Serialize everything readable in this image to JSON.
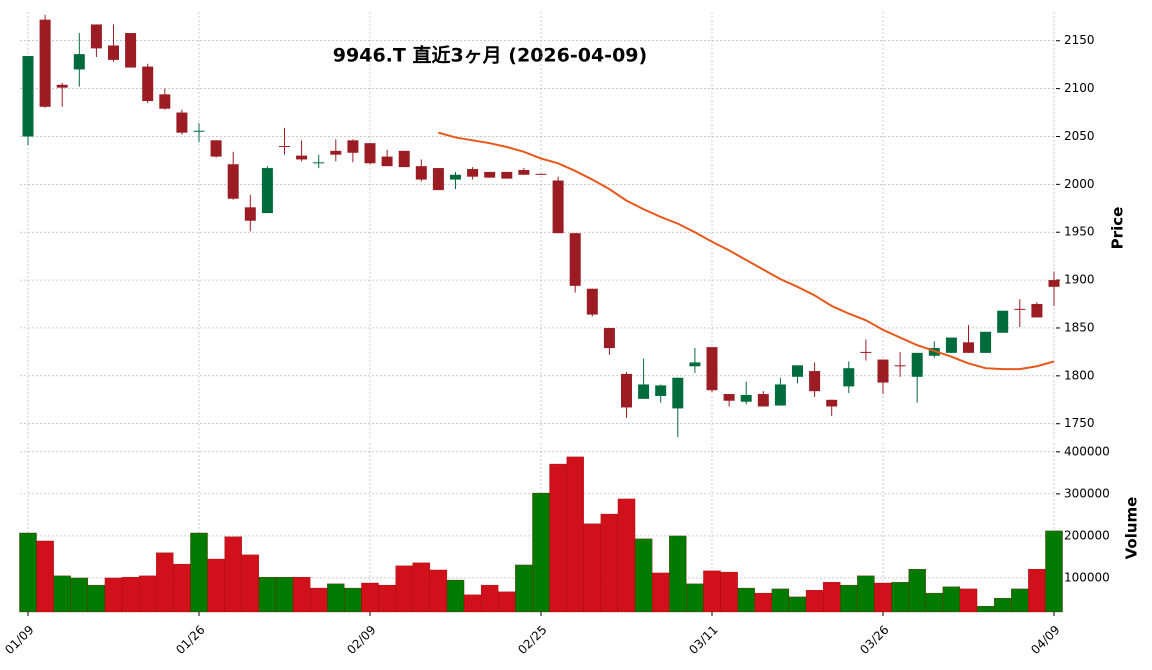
{
  "chart_data": {
    "type": "candlestick",
    "title": "9946.T  直近3ヶ月  (2026-04-09)",
    "categories": [
      "01/09",
      null,
      null,
      null,
      null,
      null,
      null,
      null,
      null,
      null,
      "01/26",
      null,
      null,
      null,
      null,
      null,
      null,
      null,
      null,
      null,
      "02/09",
      null,
      null,
      null,
      null,
      null,
      null,
      null,
      null,
      null,
      "02/25",
      null,
      null,
      null,
      null,
      null,
      null,
      null,
      null,
      null,
      "03/11",
      null,
      null,
      null,
      null,
      null,
      null,
      null,
      null,
      null,
      "03/26",
      null,
      null,
      null,
      null,
      null,
      null,
      null,
      null,
      null,
      "04/09"
    ],
    "open": [
      2050,
      2172,
      2104,
      2120,
      2167,
      2145,
      2158,
      2123,
      2094,
      2075,
      2055,
      2046,
      2021,
      1976,
      1970,
      2040,
      2030,
      2023,
      2035,
      2046,
      2043,
      2029,
      2035,
      2019,
      2017,
      2005,
      2016,
      2013,
      2013,
      2015,
      2011,
      2004,
      1949,
      1891,
      1850,
      1802,
      1776,
      1779,
      1766,
      1810,
      1830,
      1781,
      1773,
      1781,
      1769,
      1799,
      1805,
      1775,
      1789,
      1825,
      1817,
      1811,
      1799,
      1821,
      1824,
      1835,
      1824,
      1845,
      1870,
      1875,
      1900
    ],
    "high": [
      2134,
      2177,
      2106,
      2158,
      2167,
      2167,
      2158,
      2126,
      2100,
      2078,
      2064,
      2046,
      2034,
      1989,
      2019,
      2059,
      2046,
      2031,
      2047,
      2047,
      2043,
      2036,
      2035,
      2026,
      2017,
      2013,
      2018,
      2013,
      2013,
      2017,
      2011,
      2008,
      1949,
      1891,
      1850,
      1804,
      1818,
      1791,
      1798,
      1829,
      1830,
      1781,
      1794,
      1784,
      1798,
      1811,
      1814,
      1775,
      1815,
      1838,
      1817,
      1825,
      1824,
      1836,
      1840,
      1853,
      1846,
      1868,
      1880,
      1877,
      1909
    ],
    "low": [
      2041,
      2080,
      2081,
      2102,
      2133,
      2128,
      2122,
      2085,
      2078,
      2052,
      2044,
      2028,
      1984,
      1951,
      1970,
      2031,
      2024,
      2017,
      2024,
      2023,
      2021,
      2019,
      2018,
      2003,
      1994,
      1995,
      2005,
      2007,
      2006,
      2010,
      2010,
      1949,
      1887,
      1862,
      1822,
      1756,
      1776,
      1772,
      1736,
      1803,
      1783,
      1768,
      1770,
      1768,
      1769,
      1792,
      1778,
      1758,
      1782,
      1816,
      1781,
      1799,
      1772,
      1819,
      1824,
      1824,
      1824,
      1845,
      1851,
      1861,
      1873
    ],
    "close": [
      2134,
      2081,
      2101,
      2136,
      2142,
      2130,
      2122,
      2087,
      2079,
      2054,
      2056,
      2029,
      1985,
      1962,
      2017,
      2039,
      2026,
      2023,
      2031,
      2033,
      2022,
      2019,
      2018,
      2005,
      1994,
      2010,
      2008,
      2007,
      2006,
      2010,
      2010,
      1949,
      1894,
      1864,
      1829,
      1767,
      1791,
      1790,
      1798,
      1814,
      1785,
      1774,
      1780,
      1768,
      1791,
      1811,
      1784,
      1768,
      1808,
      1824,
      1793,
      1810,
      1824,
      1829,
      1840,
      1824,
      1846,
      1868,
      1869,
      1861,
      1893
    ],
    "up_color": "#006b3c",
    "down_color": "#9b1c23",
    "series": [
      {
        "color": "#e8581a",
        "values": [
          null,
          null,
          null,
          null,
          null,
          null,
          null,
          null,
          null,
          null,
          null,
          null,
          null,
          null,
          null,
          null,
          null,
          null,
          null,
          null,
          null,
          null,
          null,
          null,
          2054,
          2049,
          2046,
          2043,
          2039,
          2034,
          2027,
          2022,
          2014,
          2005,
          1995,
          1983,
          1974,
          1966,
          1959,
          1950,
          1940,
          1931,
          1921,
          1911,
          1901,
          1893,
          1884,
          1873,
          1865,
          1858,
          1848,
          1840,
          1832,
          1826,
          1820,
          1813,
          1808,
          1807,
          1807,
          1810,
          1815
        ]
      }
    ],
    "ylim": [
      1733,
      2180
    ],
    "yticks": [
      1750,
      1800,
      1850,
      1900,
      1950,
      2000,
      2050,
      2100,
      2150
    ],
    "ylabel": "Price",
    "volume": [
      207000,
      188000,
      105000,
      100000,
      83000,
      100000,
      102000,
      105000,
      160000,
      133000,
      207000,
      145000,
      198000,
      155000,
      102000,
      102000,
      102000,
      76000,
      86000,
      76000,
      88000,
      83000,
      129000,
      136000,
      119000,
      95000,
      60000,
      83000,
      67000,
      131000,
      302000,
      371000,
      388000,
      229000,
      252000,
      288000,
      193000,
      112000,
      200000,
      86000,
      117000,
      114000,
      76000,
      64000,
      74000,
      55000,
      71000,
      90000,
      83000,
      105000,
      88000,
      90000,
      121000,
      64000,
      79000,
      74000,
      33000,
      52000,
      74000,
      121000,
      212000
    ],
    "volume_up_color": "#007a00",
    "volume_down_color": "#d0101a",
    "volume_ylim": [
      19000,
      421000
    ],
    "volume_yticks": [
      100000,
      200000,
      300000,
      400000
    ],
    "volume_label": "Volume",
    "grid": true
  }
}
